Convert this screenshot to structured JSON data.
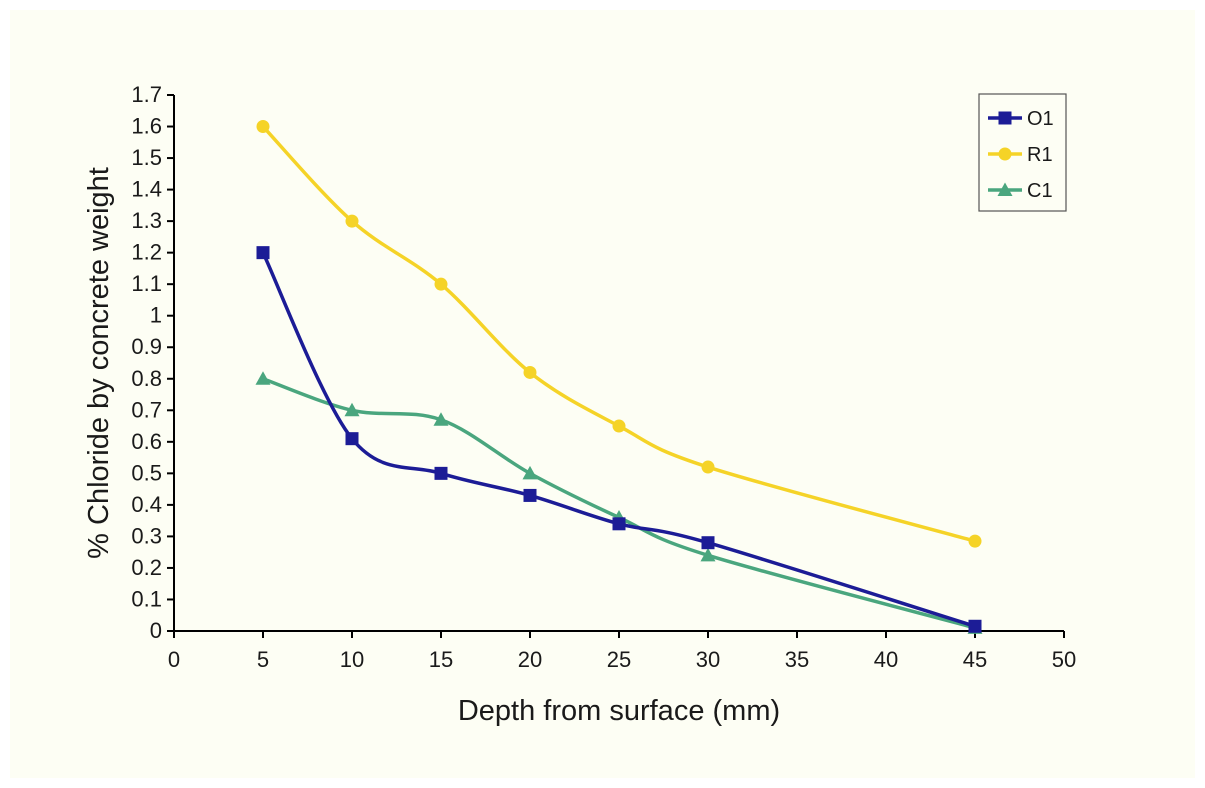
{
  "chart_data": {
    "type": "line",
    "title": "",
    "xlabel": "Depth from surface (mm)",
    "ylabel": "% Chloride by concrete weight",
    "xlim": [
      0,
      50
    ],
    "ylim": [
      0,
      1.7
    ],
    "x_ticks": [
      "0",
      "5",
      "10",
      "15",
      "20",
      "25",
      "30",
      "35",
      "40",
      "45",
      "50"
    ],
    "y_ticks": [
      "0",
      "0.1",
      "0.2",
      "0.3",
      "0.4",
      "0.5",
      "0.6",
      "0.7",
      "0.8",
      "0.9",
      "1",
      "1.1",
      "1.2",
      "1.3",
      "1.4",
      "1.5",
      "1.6",
      "1.7"
    ],
    "grid": false,
    "legend_position": "top-right",
    "series": [
      {
        "name": "O1",
        "color": "#1c1c96",
        "marker": "square",
        "x": [
          5,
          10,
          15,
          20,
          25,
          30,
          45
        ],
        "y": [
          1.2,
          0.61,
          0.5,
          0.43,
          0.34,
          0.28,
          0.015
        ]
      },
      {
        "name": "R1",
        "color": "#f5d327",
        "marker": "circle",
        "x": [
          5,
          10,
          15,
          20,
          25,
          30,
          45
        ],
        "y": [
          1.6,
          1.3,
          1.1,
          0.82,
          0.65,
          0.52,
          0.285
        ]
      },
      {
        "name": "C1",
        "color": "#4aa67e",
        "marker": "triangle",
        "x": [
          5,
          10,
          15,
          20,
          25,
          30,
          45
        ],
        "y": [
          0.8,
          0.7,
          0.67,
          0.5,
          0.36,
          0.24,
          0.01
        ]
      }
    ]
  }
}
